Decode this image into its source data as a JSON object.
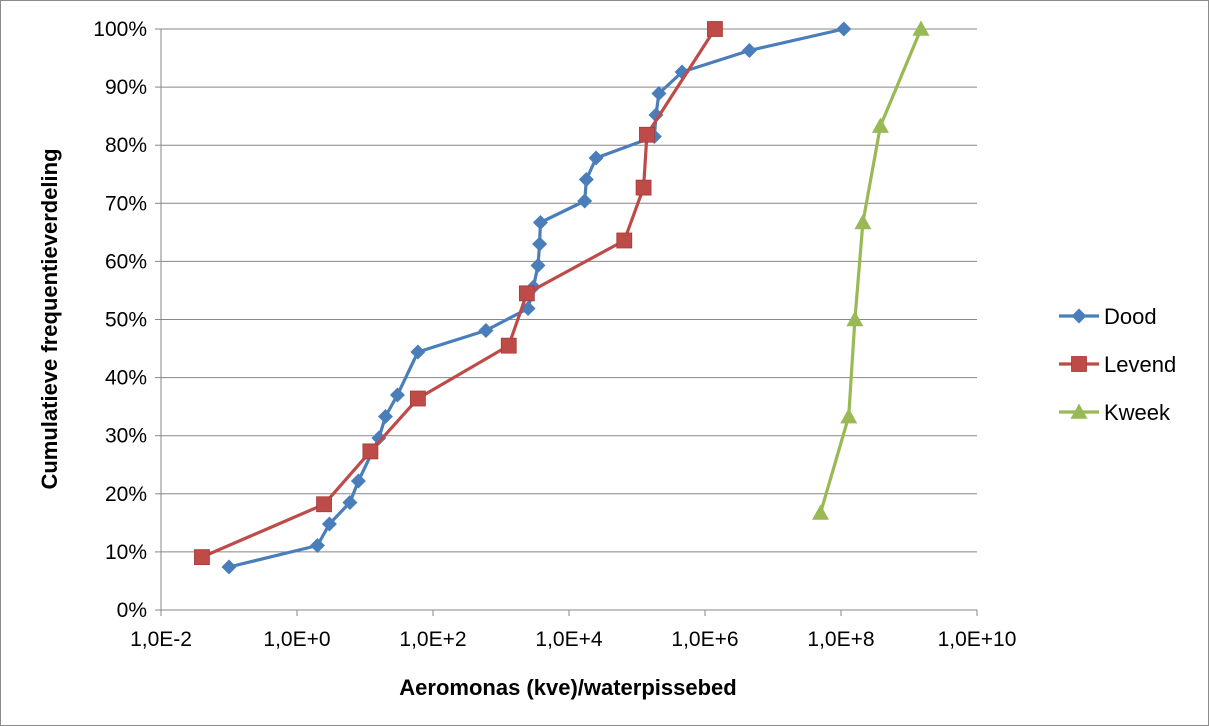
{
  "chart_data": {
    "type": "line",
    "title": "",
    "xlabel": "Aeromonas (kve)/waterpissebed",
    "ylabel": "Cumulatieve frequentieverdeling",
    "x_scale": "log",
    "xlim": [
      0.01,
      10000000000
    ],
    "ylim": [
      0,
      100
    ],
    "x_tick_labels": [
      "1,0E-2",
      "1,0E+0",
      "1,0E+2",
      "1,0E+4",
      "1,0E+6",
      "1,0E+8",
      "1,0E+10"
    ],
    "y_tick_labels": [
      "0%",
      "10%",
      "20%",
      "30%",
      "40%",
      "50%",
      "60%",
      "70%",
      "80%",
      "90%",
      "100%"
    ],
    "grid": {
      "horizontal": true,
      "vertical": false
    },
    "legend": "right",
    "series": [
      {
        "name": "Dood",
        "color": "#4a7ebb",
        "marker": "diamond",
        "points": [
          [
            0.1,
            7.4
          ],
          [
            2.0,
            11.1
          ],
          [
            3.0,
            14.8
          ],
          [
            6.0,
            18.5
          ],
          [
            8.0,
            22.2
          ],
          [
            16.0,
            29.6
          ],
          [
            20.0,
            33.3
          ],
          [
            30.0,
            37.0
          ],
          [
            60.0,
            44.4
          ],
          [
            600.0,
            48.1
          ],
          [
            2500.0,
            51.9
          ],
          [
            3000.0,
            55.6
          ],
          [
            3500.0,
            59.3
          ],
          [
            3700.0,
            63.0
          ],
          [
            3800.0,
            66.7
          ],
          [
            17000.0,
            70.4
          ],
          [
            18000.0,
            74.1
          ],
          [
            25000.0,
            77.8
          ],
          [
            180000.0,
            81.5
          ],
          [
            190000.0,
            85.2
          ],
          [
            210000.0,
            88.9
          ],
          [
            460000.0,
            92.6
          ],
          [
            4500000.0,
            96.3
          ],
          [
            110000000.0,
            100.0
          ]
        ]
      },
      {
        "name": "Levend",
        "color": "#be4b48",
        "marker": "square",
        "points": [
          [
            0.04,
            9.1
          ],
          [
            2.5,
            18.2
          ],
          [
            12.0,
            27.3
          ],
          [
            60.0,
            36.4
          ],
          [
            1300.0,
            45.5
          ],
          [
            2400.0,
            54.5
          ],
          [
            65000.0,
            63.6
          ],
          [
            125000.0,
            72.7
          ],
          [
            140000.0,
            81.8
          ],
          [
            1400000.0,
            100.0
          ]
        ]
      },
      {
        "name": "Kweek",
        "color": "#98b954",
        "marker": "triangle",
        "points": [
          [
            50000000.0,
            16.7
          ],
          [
            130000000.0,
            33.3
          ],
          [
            160000000.0,
            50.0
          ],
          [
            210000000.0,
            66.7
          ],
          [
            380000000.0,
            83.3
          ],
          [
            1500000000.0,
            100.0
          ]
        ]
      }
    ]
  }
}
